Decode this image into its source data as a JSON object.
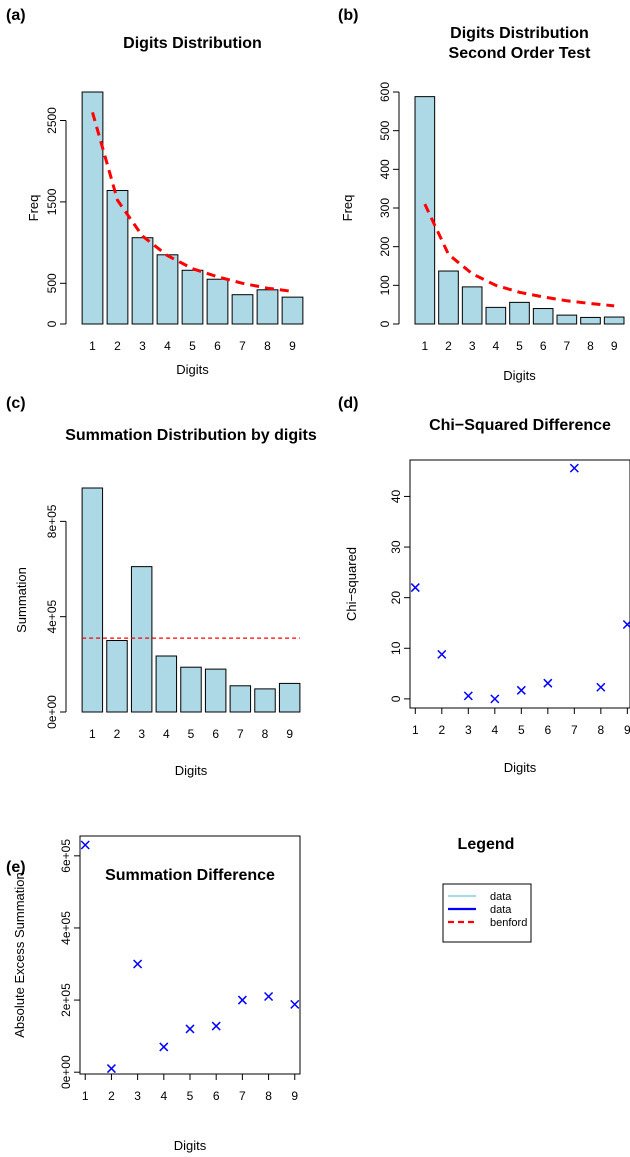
{
  "legend": {
    "title": "Legend",
    "entries": [
      {
        "label": "data",
        "color": "#add8e6",
        "style": "solid"
      },
      {
        "label": "data",
        "color": "#0000ff",
        "style": "solid"
      },
      {
        "label": "benford",
        "color": "#ff0000",
        "style": "dashed"
      }
    ]
  },
  "chart_data": [
    {
      "panel": "(a)",
      "type": "bar",
      "title": [
        "Digits Distribution"
      ],
      "xlabel": "Digits",
      "ylabel": "Freq",
      "categories": [
        "1",
        "2",
        "3",
        "4",
        "5",
        "6",
        "7",
        "8",
        "9"
      ],
      "ylim": [
        0,
        2850
      ],
      "yticks": [
        0,
        500,
        1500,
        2500
      ],
      "bar_color": "#add8e6",
      "series": [
        {
          "values": [
            2850,
            1640,
            1060,
            850,
            660,
            550,
            360,
            420,
            330
          ]
        }
      ],
      "benford": {
        "style": "dashed-curve",
        "color": "#ff0000",
        "values": [
          2600,
          1520,
          1080,
          840,
          680,
          580,
          500,
          440,
          400
        ]
      }
    },
    {
      "panel": "(b)",
      "type": "bar",
      "title": [
        "Digits Distribution",
        "Second Order Test"
      ],
      "xlabel": "Digits",
      "ylabel": "Freq",
      "categories": [
        "1",
        "2",
        "3",
        "4",
        "5",
        "6",
        "7",
        "8",
        "9"
      ],
      "ylim": [
        0,
        600
      ],
      "yticks": [
        0,
        100,
        200,
        300,
        400,
        500,
        600
      ],
      "bar_color": "#add8e6",
      "series": [
        {
          "values": [
            588,
            137,
            96,
            43,
            56,
            40,
            23,
            17,
            18
          ]
        }
      ],
      "benford": {
        "style": "dashed-curve",
        "color": "#ff0000",
        "values": [
          310,
          180,
          130,
          100,
          82,
          70,
          60,
          53,
          47
        ]
      }
    },
    {
      "panel": "(c)",
      "type": "bar",
      "title": [
        "Summation Distribution by digits"
      ],
      "xlabel": "Digits",
      "ylabel": "Summation",
      "categories": [
        "1",
        "2",
        "3",
        "4",
        "5",
        "6",
        "7",
        "8",
        "9"
      ],
      "ylim": [
        0,
        940000
      ],
      "yticks": [
        0,
        400000,
        800000
      ],
      "ytick_labels": [
        "0e+00",
        "4e+05",
        "8e+05"
      ],
      "bar_color": "#add8e6",
      "series": [
        {
          "values": [
            940000,
            300000,
            610000,
            235000,
            188000,
            180000,
            110000,
            97000,
            120000
          ]
        }
      ],
      "benford": {
        "style": "dashed-hline",
        "color": "#ff0000",
        "value": 310000
      }
    },
    {
      "panel": "(d)",
      "type": "scatter",
      "title": [
        "Chi−Squared Difference"
      ],
      "xlabel": "Digits",
      "ylabel": "Chi−squared",
      "xlim": [
        0.8,
        9.1
      ],
      "ylim": [
        -1.8,
        47.2
      ],
      "xticks": [
        1,
        2,
        3,
        4,
        5,
        6,
        7,
        8,
        9
      ],
      "yticks": [
        0,
        10,
        20,
        30,
        40
      ],
      "marker": "x",
      "marker_color": "#0000ff",
      "x": [
        1,
        2,
        3,
        4,
        5,
        6,
        7,
        8,
        9
      ],
      "y": [
        22.0,
        8.8,
        0.6,
        0.0,
        1.7,
        3.1,
        45.6,
        2.3,
        14.7
      ]
    },
    {
      "panel": "(e)",
      "type": "scatter",
      "title": [
        "Summation Difference"
      ],
      "xlabel": "Digits",
      "ylabel": "Absolute Excess Summation",
      "xlim": [
        0.8,
        9.2
      ],
      "ylim": [
        -5000,
        655000
      ],
      "xticks": [
        1,
        2,
        3,
        4,
        5,
        6,
        7,
        8,
        9
      ],
      "yticks": [
        0,
        200000,
        400000,
        600000
      ],
      "ytick_labels": [
        "0e+00",
        "2e+05",
        "4e+05",
        "6e+05"
      ],
      "marker": "x",
      "marker_color": "#0000ff",
      "x": [
        1,
        2,
        3,
        4,
        5,
        6,
        7,
        8,
        9
      ],
      "y": [
        630000,
        10000,
        300000,
        70000,
        120000,
        128000,
        200000,
        210000,
        188000
      ]
    }
  ]
}
